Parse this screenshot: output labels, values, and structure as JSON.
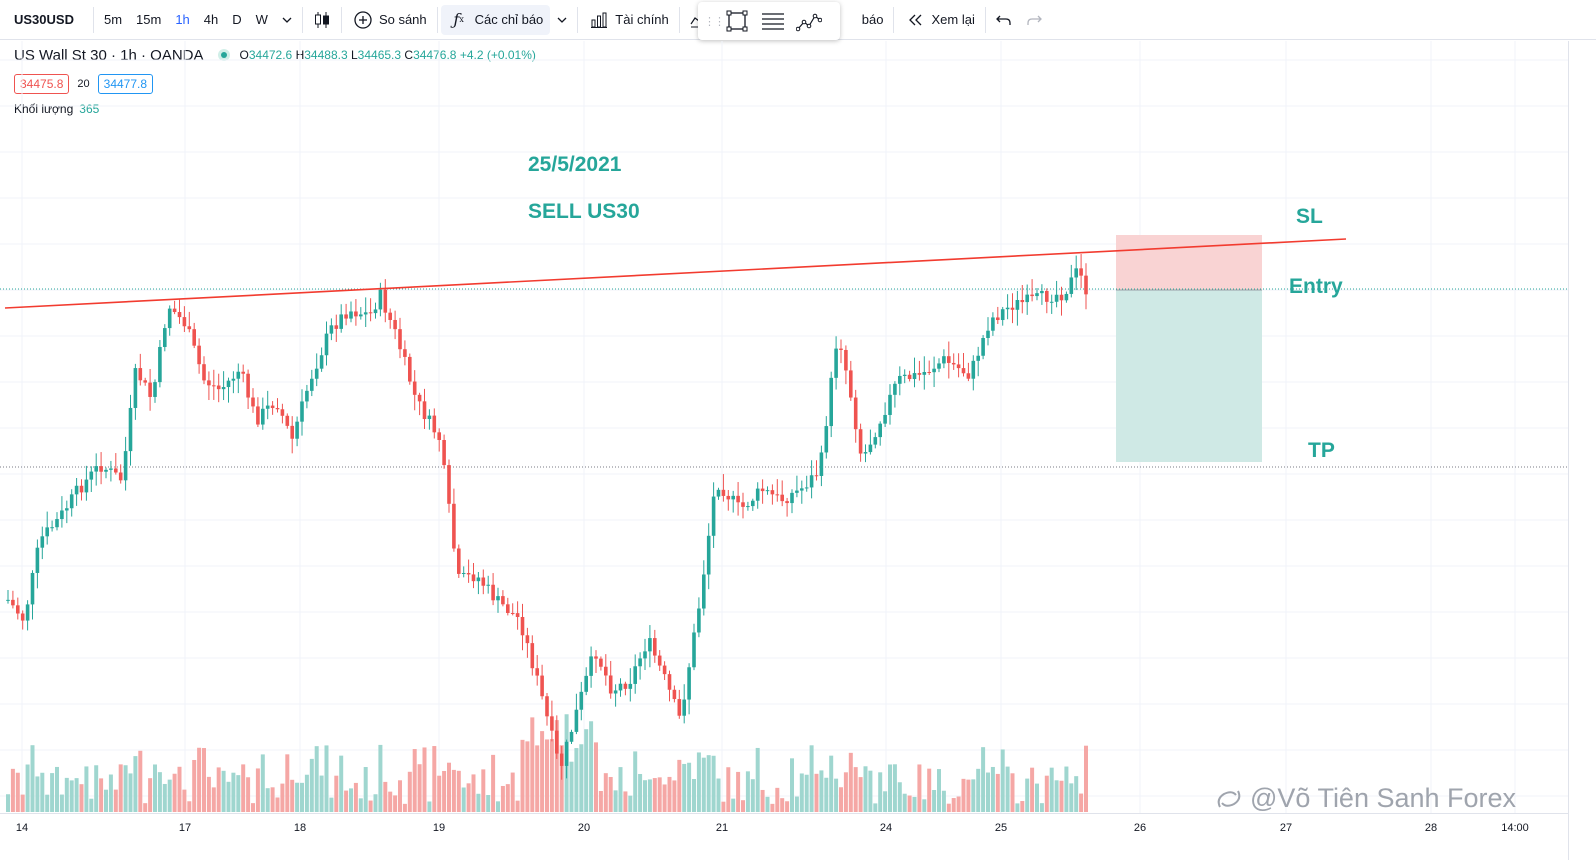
{
  "toolbar": {
    "symbol": "US30USD",
    "intervals": [
      "5m",
      "15m",
      "1h",
      "4h",
      "D",
      "W"
    ],
    "active_interval": "1h",
    "compare_label": "So sánh",
    "indicators_label": "Các chỉ báo",
    "financials_label": "Tài chính",
    "alert_label": "báo",
    "replay_label": "Xem lại"
  },
  "legend": {
    "title": "US Wall St 30 · 1h · OANDA",
    "open_label": "O",
    "open": "34472.6",
    "high_label": "H",
    "high": "34488.3",
    "low_label": "L",
    "low": "34465.3",
    "close_label": "C",
    "close": "34476.8",
    "change": "+4.2 (+0.01%)",
    "sell_price": "34475.8",
    "spread": "20",
    "buy_price": "34477.8",
    "volume_label": "Khối lượng",
    "volume_value": "365"
  },
  "annotations": {
    "date": "25/5/2021",
    "trade": "SELL US30",
    "sl": "SL",
    "entry": "Entry",
    "tp": "TP"
  },
  "time_axis": {
    "labels": [
      "14",
      "17",
      "18",
      "19",
      "20",
      "21",
      "24",
      "25",
      "26",
      "27",
      "28",
      "14:00"
    ]
  },
  "watermark": "@Võ Tiên Sanh Forex",
  "colors": {
    "up": "#26a69a",
    "down": "#ef5350",
    "trendline": "#f23b2f",
    "stop_zone": "#f9d3d3",
    "target_zone": "#cfe9e5",
    "annotation": "#26a69a"
  }
}
